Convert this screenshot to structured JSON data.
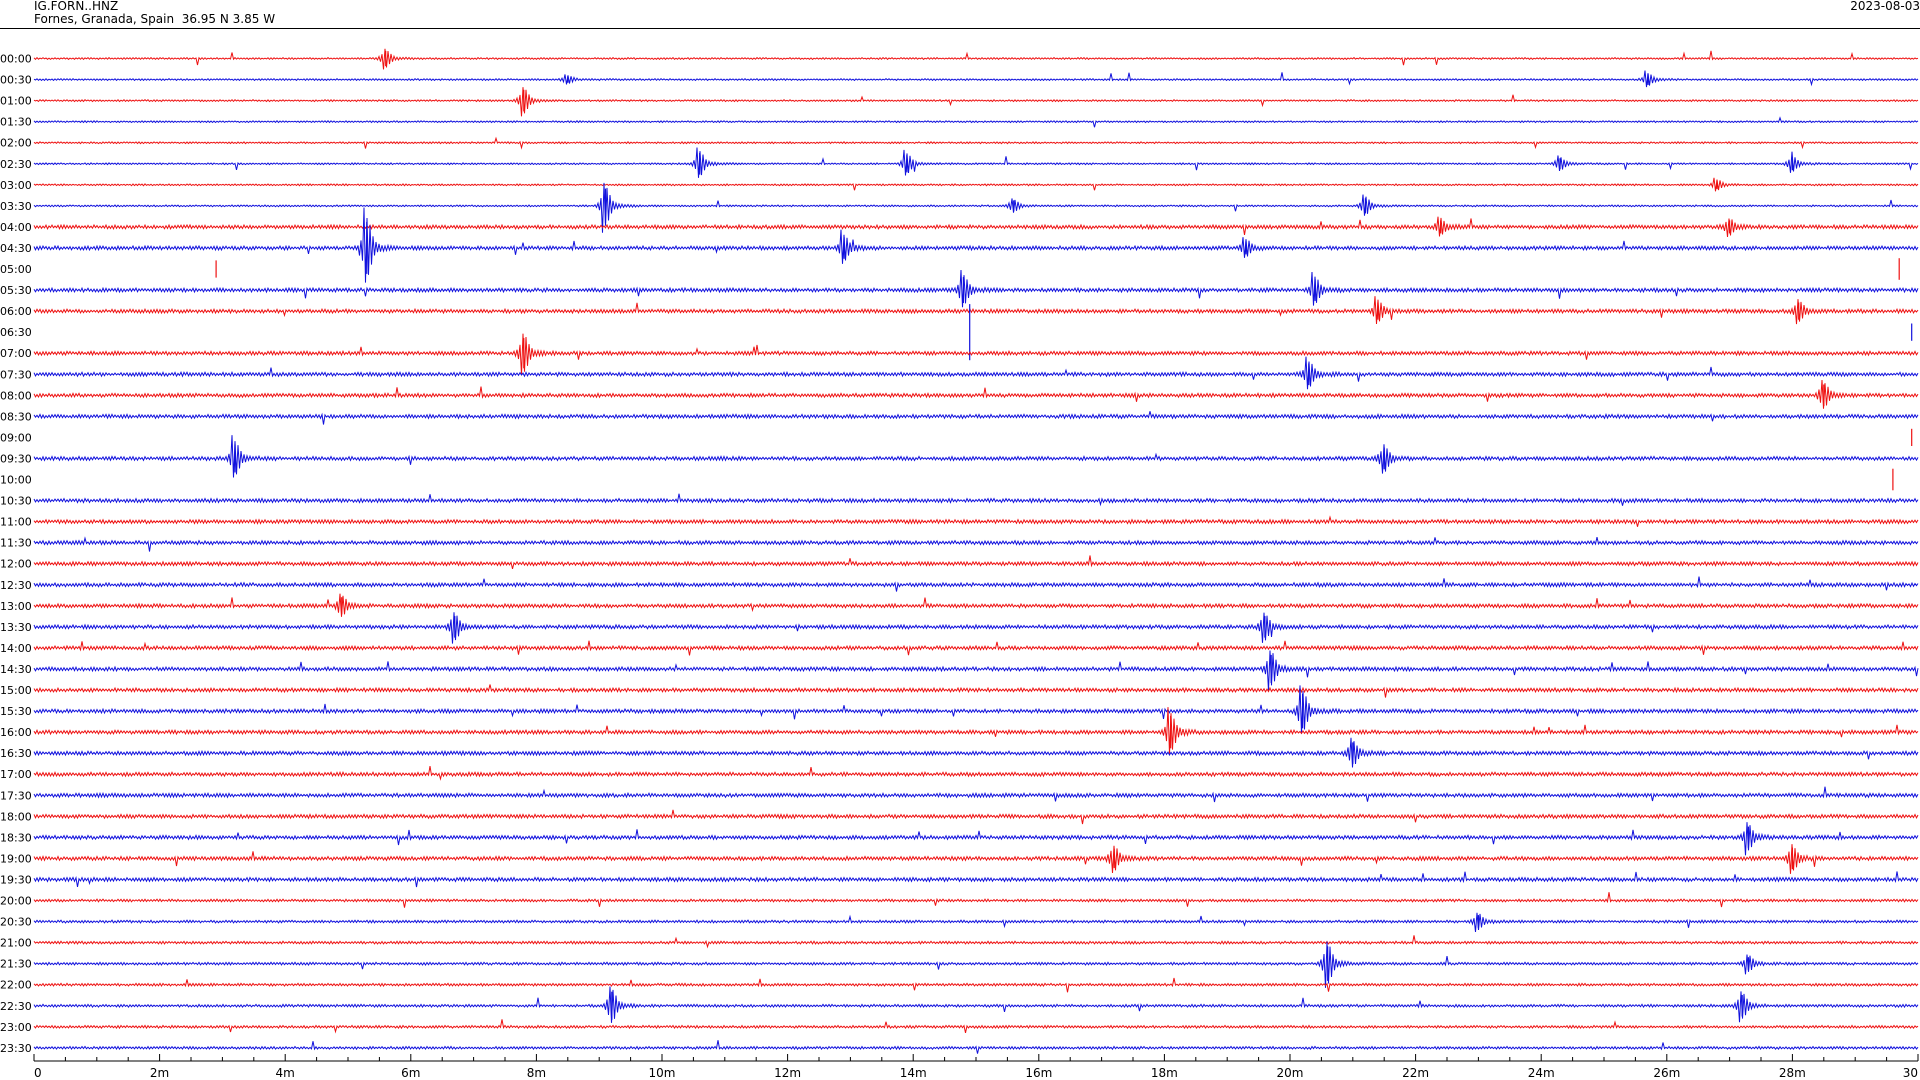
{
  "header": {
    "station": "IG.FORN..HNZ",
    "location": "Fornes, Granada, Spain  36.95 N 3.85 W",
    "date": "2023-08-03"
  },
  "chart_data": {
    "type": "line",
    "subtype": "helicorder",
    "row_labels": [
      "00:00",
      "00:30",
      "01:00",
      "01:30",
      "02:00",
      "02:30",
      "03:00",
      "03:30",
      "04:00",
      "04:30",
      "05:00",
      "05:30",
      "06:00",
      "06:30",
      "07:00",
      "07:30",
      "08:00",
      "08:30",
      "09:00",
      "09:30",
      "10:00",
      "10:30",
      "11:00",
      "11:30",
      "12:00",
      "12:30",
      "13:00",
      "13:30",
      "14:00",
      "14:30",
      "15:00",
      "15:30",
      "16:00",
      "16:30",
      "17:00",
      "17:30",
      "18:00",
      "18:30",
      "19:00",
      "19:30",
      "20:00",
      "20:30",
      "21:00",
      "21:30",
      "22:00",
      "22:30",
      "23:00",
      "23:30"
    ],
    "x_ticks": [
      "0",
      "2m",
      "4m",
      "6m",
      "8m",
      "10m",
      "12m",
      "14m",
      "16m",
      "18m",
      "20m",
      "22m",
      "24m",
      "26m",
      "28m",
      "30"
    ],
    "xlim": [
      0,
      30
    ],
    "x_unit": "minutes",
    "colors": {
      "even_rows": "#ee1111",
      "odd_rows": "#1111dd"
    },
    "events": [
      {
        "row": 0,
        "minute": 5.6,
        "amplitude": 0.7
      },
      {
        "row": 1,
        "minute": 8.5,
        "amplitude": 0.3
      },
      {
        "row": 1,
        "minute": 25.7,
        "amplitude": 0.5
      },
      {
        "row": 2,
        "minute": 7.8,
        "amplitude": 1.0
      },
      {
        "row": 5,
        "minute": 10.6,
        "amplitude": 1.0
      },
      {
        "row": 5,
        "minute": 13.9,
        "amplitude": 0.8
      },
      {
        "row": 5,
        "minute": 24.3,
        "amplitude": 0.5
      },
      {
        "row": 5,
        "minute": 28.0,
        "amplitude": 0.6
      },
      {
        "row": 6,
        "minute": 26.8,
        "amplitude": 0.4
      },
      {
        "row": 7,
        "minute": 9.1,
        "amplitude": 1.6
      },
      {
        "row": 7,
        "minute": 15.6,
        "amplitude": 0.5
      },
      {
        "row": 7,
        "minute": 21.2,
        "amplitude": 0.7
      },
      {
        "row": 8,
        "minute": 22.4,
        "amplitude": 0.6
      },
      {
        "row": 8,
        "minute": 27.0,
        "amplitude": 0.6
      },
      {
        "row": 9,
        "minute": 5.3,
        "amplitude": 2.4
      },
      {
        "row": 9,
        "minute": 12.9,
        "amplitude": 1.0
      },
      {
        "row": 9,
        "minute": 19.3,
        "amplitude": 0.6
      },
      {
        "row": 10,
        "minute": 2.9,
        "amplitude": 0.8
      },
      {
        "row": 10,
        "minute": 29.7,
        "amplitude": 1.0
      },
      {
        "row": 11,
        "minute": 14.8,
        "amplitude": 1.2
      },
      {
        "row": 11,
        "minute": 20.4,
        "amplitude": 1.0
      },
      {
        "row": 12,
        "minute": 21.4,
        "amplitude": 0.8
      },
      {
        "row": 12,
        "minute": 28.1,
        "amplitude": 0.8
      },
      {
        "row": 13,
        "minute": 14.9,
        "amplitude": 2.6
      },
      {
        "row": 13,
        "minute": 29.9,
        "amplitude": 0.8
      },
      {
        "row": 14,
        "minute": 7.8,
        "amplitude": 1.4
      },
      {
        "row": 15,
        "minute": 20.3,
        "amplitude": 1.0
      },
      {
        "row": 16,
        "minute": 28.5,
        "amplitude": 1.0
      },
      {
        "row": 18,
        "minute": 29.9,
        "amplitude": 0.8
      },
      {
        "row": 19,
        "minute": 3.2,
        "amplitude": 1.3
      },
      {
        "row": 19,
        "minute": 21.5,
        "amplitude": 1.0
      },
      {
        "row": 20,
        "minute": 29.6,
        "amplitude": 1.0
      },
      {
        "row": 26,
        "minute": 4.9,
        "amplitude": 0.8
      },
      {
        "row": 27,
        "minute": 6.7,
        "amplitude": 1.0
      },
      {
        "row": 27,
        "minute": 19.6,
        "amplitude": 1.0
      },
      {
        "row": 29,
        "minute": 19.7,
        "amplitude": 1.3
      },
      {
        "row": 31,
        "minute": 20.2,
        "amplitude": 1.6
      },
      {
        "row": 32,
        "minute": 18.1,
        "amplitude": 1.5
      },
      {
        "row": 33,
        "minute": 21.0,
        "amplitude": 1.0
      },
      {
        "row": 37,
        "minute": 27.3,
        "amplitude": 1.0
      },
      {
        "row": 38,
        "minute": 17.2,
        "amplitude": 0.9
      },
      {
        "row": 38,
        "minute": 28.0,
        "amplitude": 1.0
      },
      {
        "row": 41,
        "minute": 23.0,
        "amplitude": 0.6
      },
      {
        "row": 43,
        "minute": 20.6,
        "amplitude": 1.6
      },
      {
        "row": 43,
        "minute": 27.3,
        "amplitude": 0.6
      },
      {
        "row": 45,
        "minute": 9.2,
        "amplitude": 1.3
      },
      {
        "row": 45,
        "minute": 27.2,
        "amplitude": 1.0
      }
    ]
  }
}
